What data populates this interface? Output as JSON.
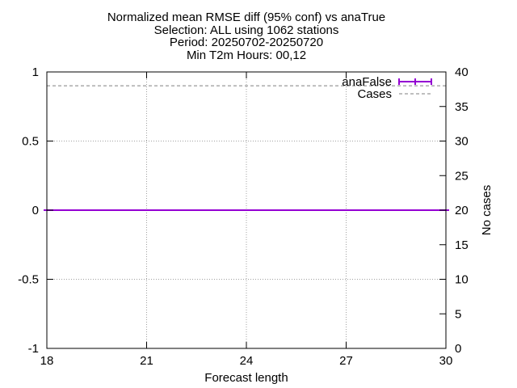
{
  "chart_data": {
    "type": "line",
    "title_lines": [
      "Normalized mean RMSE diff (95% conf) vs anaTrue",
      "Selection: ALL using  1062 stations",
      "Period: 20250702-20250720",
      "Min T2m   Hours: 00,12"
    ],
    "xlabel": "Forecast length",
    "ylabel": "",
    "y2label": "No cases",
    "xlim": [
      18,
      30
    ],
    "ylim": [
      -1,
      1
    ],
    "y2lim": [
      0,
      40
    ],
    "xticks": [
      "18",
      "21",
      "24",
      "27",
      "30"
    ],
    "yticks": [
      "-1",
      "-0.5",
      "0",
      "0.5",
      "1"
    ],
    "y2ticks": [
      "0",
      "5",
      "10",
      "15",
      "20",
      "25",
      "30",
      "35",
      "40"
    ],
    "grid": true,
    "legend_position": "top-right",
    "series": [
      {
        "name": "anaFalse",
        "axis": "y",
        "style": "errorbars",
        "color": "#9400d3",
        "x": [
          18,
          30
        ],
        "y": [
          0,
          0
        ]
      },
      {
        "name": "Cases",
        "axis": "y2",
        "style": "dashed",
        "color": "#999999",
        "x": [
          18,
          30
        ],
        "y": [
          38,
          38
        ]
      }
    ]
  }
}
